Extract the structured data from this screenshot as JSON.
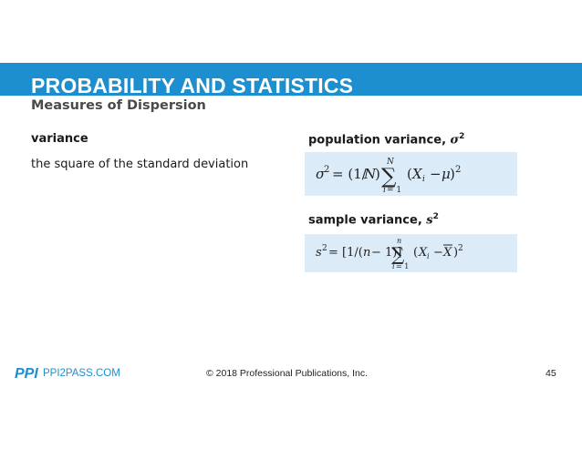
{
  "header": {
    "title": "PROBABILITY AND STATISTICS",
    "subtitle": "Measures of Dispersion"
  },
  "left": {
    "term": "variance",
    "definition": "the square of the standard deviation"
  },
  "population": {
    "heading_text": "population variance, ",
    "symbol": "σ",
    "superscript": "2",
    "formula": "σ^2 = (1/N) Σ_{i=1}^{N} (X_i − μ)^2"
  },
  "sample": {
    "heading_text": "sample variance, ",
    "symbol": "s",
    "superscript": "2",
    "formula": "s^2 = [1/(n − 1)] Σ_{i=1}^{n} (X_i − X̄)^2"
  },
  "footer": {
    "logo": "PPI",
    "site": "PPI2PASS.COM",
    "copyright": "© 2018 Professional Publications, Inc.",
    "page_number": "45"
  },
  "colors": {
    "accent": "#1e8fce",
    "formula_background": "#dcebf8"
  }
}
